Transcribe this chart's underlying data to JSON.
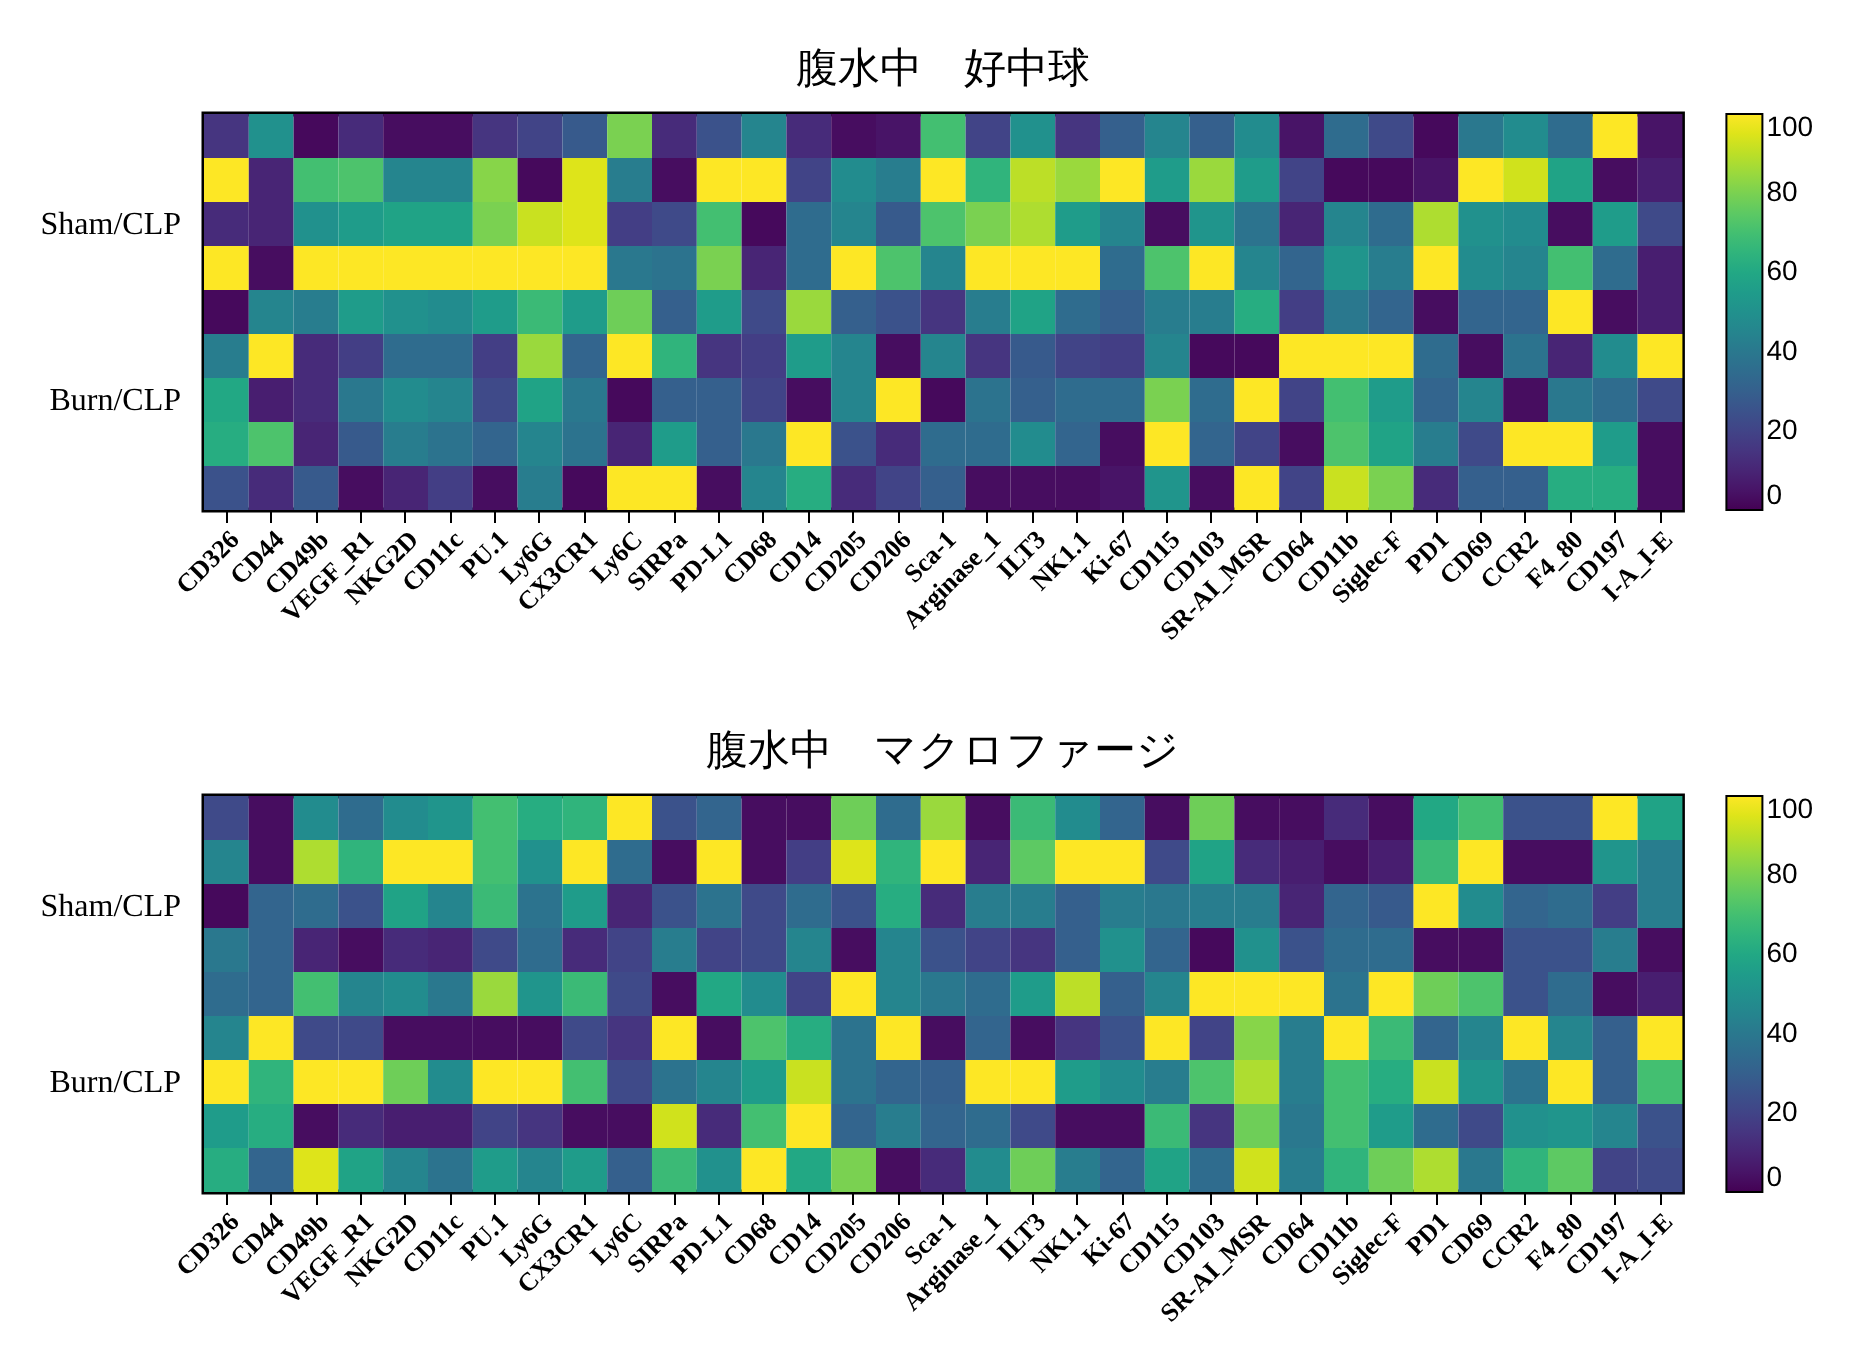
{
  "chart_data": [
    {
      "type": "heatmap",
      "title": "腹水中　好中球",
      "clim": [
        0,
        100
      ],
      "cticks": [
        0,
        20,
        40,
        60,
        80,
        100
      ],
      "categories": [
        "CD326",
        "CD44",
        "CD49b",
        "VEGF_R1",
        "NKG2D",
        "CD11c",
        "PU.1",
        "Ly6G",
        "CX3CR1",
        "Ly6C",
        "SIRPa",
        "PD-L1",
        "CD68",
        "CD14",
        "CD205",
        "CD206",
        "Sca-1",
        "Arginase_1",
        "ILT3",
        "NK1.1",
        "Ki-67",
        "CD115",
        "CD103",
        "SR-AI_MSR",
        "CD64",
        "CD11b",
        "Siglec-F",
        "PD1",
        "CD69",
        "CCR2",
        "F4_80",
        "CD197",
        "I-A_I-E"
      ],
      "y_categories": [
        null,
        null,
        "Sham/CLP",
        null,
        null,
        null,
        "Burn/CLP",
        null,
        null
      ],
      "cells": [
        [
          15,
          50,
          2,
          12,
          3,
          3,
          15,
          20,
          28,
          80,
          12,
          25,
          45,
          12,
          3,
          5,
          70,
          20,
          50,
          15,
          30,
          45,
          30,
          48,
          5,
          35,
          22,
          2,
          40,
          48,
          35,
          100,
          5
        ],
        [
          100,
          10,
          70,
          72,
          45,
          45,
          82,
          2,
          95,
          42,
          3,
          100,
          100,
          20,
          48,
          42,
          100,
          65,
          90,
          85,
          100,
          55,
          85,
          55,
          20,
          2,
          2,
          5,
          100,
          93,
          58,
          3,
          8
        ],
        [
          12,
          10,
          50,
          55,
          58,
          58,
          80,
          92,
          95,
          18,
          22,
          70,
          2,
          35,
          45,
          28,
          72,
          80,
          88,
          55,
          45,
          3,
          52,
          38,
          10,
          45,
          35,
          88,
          50,
          48,
          3,
          55,
          22
        ],
        [
          100,
          3,
          100,
          100,
          100,
          100,
          100,
          100,
          100,
          40,
          38,
          80,
          10,
          35,
          100,
          72,
          45,
          100,
          100,
          100,
          35,
          72,
          100,
          45,
          32,
          52,
          42,
          100,
          48,
          45,
          70,
          35,
          8
        ],
        [
          2,
          45,
          42,
          55,
          50,
          48,
          55,
          68,
          55,
          78,
          30,
          55,
          22,
          85,
          30,
          25,
          15,
          42,
          58,
          35,
          30,
          42,
          42,
          62,
          18,
          40,
          32,
          3,
          32,
          32,
          100,
          3,
          8
        ],
        [
          42,
          100,
          12,
          18,
          35,
          35,
          18,
          85,
          32,
          100,
          65,
          15,
          18,
          55,
          45,
          3,
          45,
          15,
          28,
          20,
          18,
          45,
          2,
          2,
          100,
          100,
          100,
          35,
          3,
          38,
          10,
          48,
          100
        ],
        [
          60,
          8,
          12,
          40,
          48,
          45,
          22,
          58,
          40,
          2,
          30,
          30,
          20,
          3,
          45,
          100,
          2,
          38,
          30,
          35,
          35,
          80,
          35,
          100,
          20,
          70,
          55,
          32,
          45,
          3,
          40,
          35,
          22
        ],
        [
          62,
          72,
          10,
          28,
          42,
          38,
          32,
          45,
          38,
          10,
          55,
          30,
          40,
          100,
          25,
          12,
          35,
          35,
          48,
          32,
          3,
          100,
          32,
          20,
          3,
          72,
          58,
          42,
          22,
          100,
          100,
          55,
          3
        ],
        [
          25,
          12,
          28,
          3,
          10,
          18,
          3,
          42,
          2,
          100,
          100,
          3,
          45,
          62,
          12,
          20,
          30,
          3,
          3,
          3,
          5,
          52,
          3,
          100,
          20,
          92,
          80,
          12,
          30,
          30,
          62,
          62,
          3
        ]
      ]
    },
    {
      "type": "heatmap",
      "title": "腹水中　マクロファージ",
      "clim": [
        0,
        100
      ],
      "cticks": [
        0,
        20,
        40,
        60,
        80,
        100
      ],
      "categories": [
        "CD326",
        "CD44",
        "CD49b",
        "VEGF_R1",
        "NKG2D",
        "CD11c",
        "PU.1",
        "Ly6G",
        "CX3CR1",
        "Ly6C",
        "SIRPa",
        "PD-L1",
        "CD68",
        "CD14",
        "CD205",
        "CD206",
        "Sca-1",
        "Arginase_1",
        "ILT3",
        "NK1.1",
        "Ki-67",
        "CD115",
        "CD103",
        "SR-AI_MSR",
        "CD64",
        "CD11b",
        "Siglec-F",
        "PD1",
        "CD69",
        "CCR2",
        "F4_80",
        "CD197",
        "I-A_I-E"
      ],
      "y_categories": [
        null,
        null,
        "Sham/CLP",
        null,
        null,
        null,
        "Burn/CLP",
        null,
        null
      ],
      "cells": [
        [
          22,
          3,
          48,
          35,
          48,
          52,
          70,
          62,
          65,
          100,
          25,
          32,
          3,
          3,
          78,
          35,
          85,
          3,
          68,
          48,
          32,
          3,
          78,
          3,
          3,
          12,
          3,
          60,
          70,
          25,
          25,
          100,
          58
        ],
        [
          45,
          3,
          88,
          65,
          100,
          100,
          70,
          50,
          100,
          35,
          3,
          100,
          3,
          18,
          95,
          65,
          100,
          10,
          75,
          100,
          100,
          22,
          58,
          12,
          8,
          3,
          8,
          68,
          100,
          3,
          3,
          52,
          42
        ],
        [
          2,
          32,
          35,
          25,
          58,
          45,
          68,
          38,
          55,
          10,
          25,
          38,
          22,
          35,
          25,
          62,
          12,
          42,
          42,
          30,
          42,
          40,
          42,
          42,
          10,
          32,
          28,
          100,
          48,
          32,
          35,
          18,
          42
        ],
        [
          40,
          32,
          10,
          3,
          12,
          10,
          22,
          35,
          12,
          20,
          42,
          20,
          22,
          45,
          3,
          45,
          25,
          20,
          15,
          30,
          50,
          32,
          2,
          50,
          25,
          35,
          35,
          3,
          3,
          25,
          25,
          42,
          3
        ],
        [
          35,
          32,
          70,
          45,
          48,
          40,
          85,
          52,
          68,
          22,
          3,
          60,
          48,
          20,
          100,
          45,
          40,
          35,
          55,
          90,
          30,
          45,
          100,
          100,
          100,
          38,
          100,
          78,
          72,
          25,
          35,
          3,
          8
        ],
        [
          45,
          100,
          22,
          22,
          3,
          3,
          3,
          3,
          22,
          15,
          100,
          3,
          72,
          62,
          38,
          100,
          3,
          32,
          3,
          15,
          25,
          100,
          20,
          82,
          42,
          100,
          68,
          32,
          45,
          100,
          45,
          30,
          100
        ],
        [
          100,
          65,
          100,
          100,
          78,
          48,
          100,
          100,
          70,
          22,
          38,
          45,
          55,
          92,
          38,
          32,
          30,
          100,
          100,
          55,
          48,
          42,
          72,
          88,
          42,
          70,
          62,
          92,
          52,
          38,
          100,
          30,
          70
        ],
        [
          55,
          62,
          3,
          12,
          8,
          8,
          20,
          15,
          3,
          3,
          93,
          12,
          70,
          100,
          32,
          42,
          32,
          35,
          22,
          3,
          3,
          68,
          15,
          78,
          40,
          70,
          55,
          35,
          22,
          50,
          52,
          45,
          25
        ],
        [
          62,
          32,
          95,
          58,
          45,
          38,
          55,
          45,
          55,
          30,
          68,
          50,
          100,
          60,
          80,
          3,
          12,
          48,
          78,
          42,
          32,
          58,
          35,
          93,
          42,
          65,
          78,
          88,
          40,
          65,
          75,
          20,
          22
        ]
      ]
    }
  ]
}
